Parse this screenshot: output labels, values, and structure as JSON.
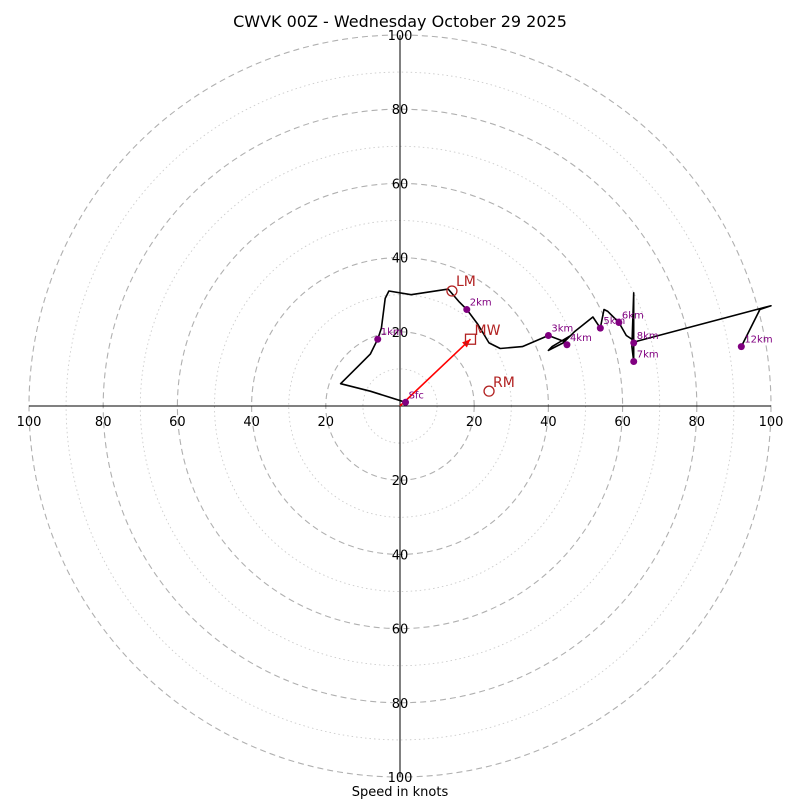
{
  "chart_data": {
    "type": "line",
    "title": "CWVK 00Z - Wednesday October 29 2025",
    "xlabel": "Speed in knots",
    "ylabel": "",
    "xlim": [
      -100,
      100
    ],
    "ylim": [
      -100,
      100
    ],
    "grid": "concentric rings every 10 knots (dashed every 20, dotted between)",
    "ring_labels": [
      "20",
      "40",
      "60",
      "80",
      "100"
    ],
    "hodograph": [
      [
        1.5,
        1
      ],
      [
        -8,
        4
      ],
      [
        -16,
        6
      ],
      [
        -13,
        9
      ],
      [
        -11,
        11
      ],
      [
        -8,
        14
      ],
      [
        -6,
        18
      ],
      [
        -5,
        21
      ],
      [
        -4,
        29
      ],
      [
        -3,
        31
      ],
      [
        3,
        30
      ],
      [
        13,
        31.5
      ],
      [
        16,
        28
      ],
      [
        18,
        26
      ],
      [
        21,
        22
      ],
      [
        24,
        17
      ],
      [
        27,
        15.5
      ],
      [
        33,
        16
      ],
      [
        40,
        19
      ],
      [
        44,
        17.5
      ],
      [
        46,
        19
      ],
      [
        41,
        16
      ],
      [
        40,
        15
      ],
      [
        44,
        17
      ],
      [
        47,
        20
      ],
      [
        52,
        24
      ],
      [
        54,
        21
      ],
      [
        55,
        26
      ],
      [
        56,
        25.5
      ],
      [
        59,
        22.5
      ],
      [
        61,
        19
      ],
      [
        62.5,
        18
      ],
      [
        63,
        17
      ],
      [
        63,
        30.5
      ],
      [
        62.5,
        16
      ],
      [
        63,
        12
      ],
      [
        63,
        17
      ],
      [
        64,
        17.5
      ],
      [
        98,
        26.5
      ],
      [
        100,
        27
      ],
      [
        97,
        26
      ],
      [
        92,
        16
      ]
    ],
    "height_points": [
      {
        "label": "Sfc",
        "x": 1.5,
        "y": 1
      },
      {
        "label": "1km",
        "x": -6,
        "y": 18
      },
      {
        "label": "2km",
        "x": 18,
        "y": 26
      },
      {
        "label": "3km",
        "x": 40,
        "y": 19
      },
      {
        "label": "4km",
        "x": 45,
        "y": 16.5
      },
      {
        "label": "5km",
        "x": 54,
        "y": 21
      },
      {
        "label": "6km",
        "x": 59,
        "y": 22.5
      },
      {
        "label": "7km",
        "x": 63,
        "y": 12
      },
      {
        "label": "8km",
        "x": 63,
        "y": 17
      },
      {
        "label": "12km",
        "x": 92,
        "y": 16
      }
    ],
    "markers": {
      "LM": {
        "label": "LM",
        "x": 14,
        "y": 31
      },
      "RM": {
        "label": "RM",
        "x": 24,
        "y": 4
      },
      "MW": {
        "label": "MW",
        "x": 19,
        "y": 18
      }
    },
    "mean_wind_vector": {
      "from": [
        0,
        0
      ],
      "to": [
        19,
        18
      ]
    },
    "colors": {
      "trace": "#000000",
      "points": "#800080",
      "markers": "#b22222",
      "vector": "#ff0000",
      "grid": "#b0b0b0"
    }
  }
}
